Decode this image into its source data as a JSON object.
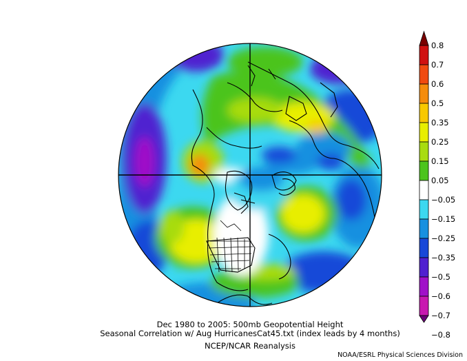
{
  "caption": {
    "line1": "Dec 1980 to 2005: 500mb Geopotential Height",
    "line2": "Seasonal Correlation w/ Aug HurricanesCat45.txt (index leads by 4 months)",
    "line3": "NCEP/NCAR Reanalysis"
  },
  "credit": "NOAA/ESRL Physical Sciences Division",
  "colorbar": {
    "labels": [
      "0.8",
      "0.7",
      "0.6",
      "0.5",
      "0.35",
      "0.25",
      "0.15",
      "0.05",
      "−0.05",
      "−0.15",
      "−0.25",
      "−0.35",
      "−0.5",
      "−0.6",
      "−0.7",
      "−0.8"
    ],
    "colors": [
      "#7a0000",
      "#d01010",
      "#f04a10",
      "#f58c0c",
      "#f8c800",
      "#e8ee00",
      "#a8dc10",
      "#4cc41c",
      "#ffffff",
      "#3cd8f0",
      "#1890e0",
      "#1848d8",
      "#5020d0",
      "#a010c8",
      "#c818b0",
      "#6a0078"
    ]
  },
  "projection": "north-polar-stereographic"
}
